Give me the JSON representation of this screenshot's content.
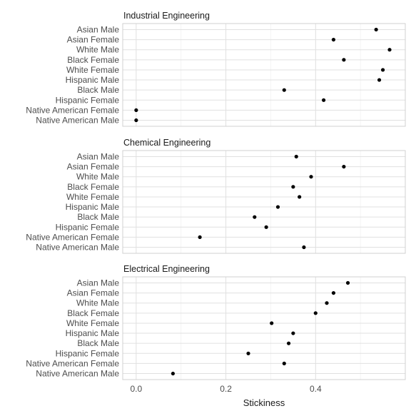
{
  "chart_data": {
    "type": "scatter",
    "xlabel": "Stickiness",
    "xlim": [
      -0.03,
      0.6
    ],
    "x_ticks": [
      0.0,
      0.2,
      0.4
    ],
    "x_tick_labels": [
      "0.0",
      "0.2",
      "0.4"
    ],
    "grid": true,
    "categories": [
      "Asian Male",
      "Asian Female",
      "White Male",
      "Black Female",
      "White Female",
      "Hispanic Male",
      "Black Male",
      "Hispanic Female",
      "Native American Female",
      "Native American Male"
    ],
    "panels": [
      {
        "title": "Industrial Engineering",
        "values": [
          0.535,
          0.44,
          0.565,
          0.463,
          0.55,
          0.542,
          0.33,
          0.418,
          0.0,
          0.0
        ]
      },
      {
        "title": "Chemical Engineering",
        "values": [
          0.357,
          0.463,
          0.39,
          0.35,
          0.364,
          0.316,
          0.264,
          0.29,
          0.142,
          0.374
        ]
      },
      {
        "title": "Electrical Engineering",
        "values": [
          0.472,
          0.44,
          0.425,
          0.4,
          0.302,
          0.35,
          0.34,
          0.25,
          0.33,
          0.082
        ]
      }
    ]
  }
}
